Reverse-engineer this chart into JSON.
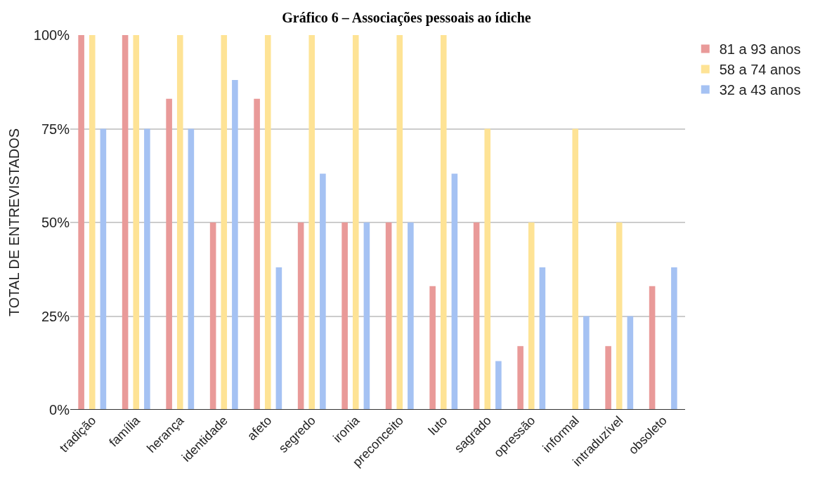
{
  "chart_data": {
    "type": "bar",
    "title": "Gráfico 6 – Associações pessoais ao ídiche",
    "ylabel": "TOTAL DE ENTREVISTADOS",
    "categories": [
      "tradição",
      "família",
      "herança",
      "identidade",
      "afeto",
      "segredo",
      "ironia",
      "preconceito",
      "luto",
      "sagrado",
      "opressão",
      "informal",
      "intraduzível",
      "obsoleto"
    ],
    "series": [
      {
        "name": "81 a 93 anos",
        "color": "#e99a99",
        "values": [
          100,
          100,
          83,
          50,
          83,
          50,
          50,
          50,
          33,
          50,
          17,
          0,
          17,
          33
        ]
      },
      {
        "name": "58 a 74 anos",
        "color": "#fee395",
        "values": [
          100,
          100,
          100,
          100,
          100,
          100,
          100,
          100,
          100,
          75,
          50,
          75,
          50,
          0
        ]
      },
      {
        "name": "32 a 43 anos",
        "color": "#a5c2f3",
        "values": [
          75,
          75,
          75,
          88,
          38,
          63,
          50,
          50,
          63,
          13,
          38,
          25,
          25,
          38
        ]
      }
    ],
    "ylim": [
      0,
      100
    ],
    "yticks": [
      {
        "value": 0,
        "label": "0%"
      },
      {
        "value": 25,
        "label": "25%"
      },
      {
        "value": 50,
        "label": "50%"
      },
      {
        "value": 75,
        "label": "75%"
      },
      {
        "value": 100,
        "label": "100%"
      }
    ],
    "grid": "y",
    "legend": "top right"
  }
}
